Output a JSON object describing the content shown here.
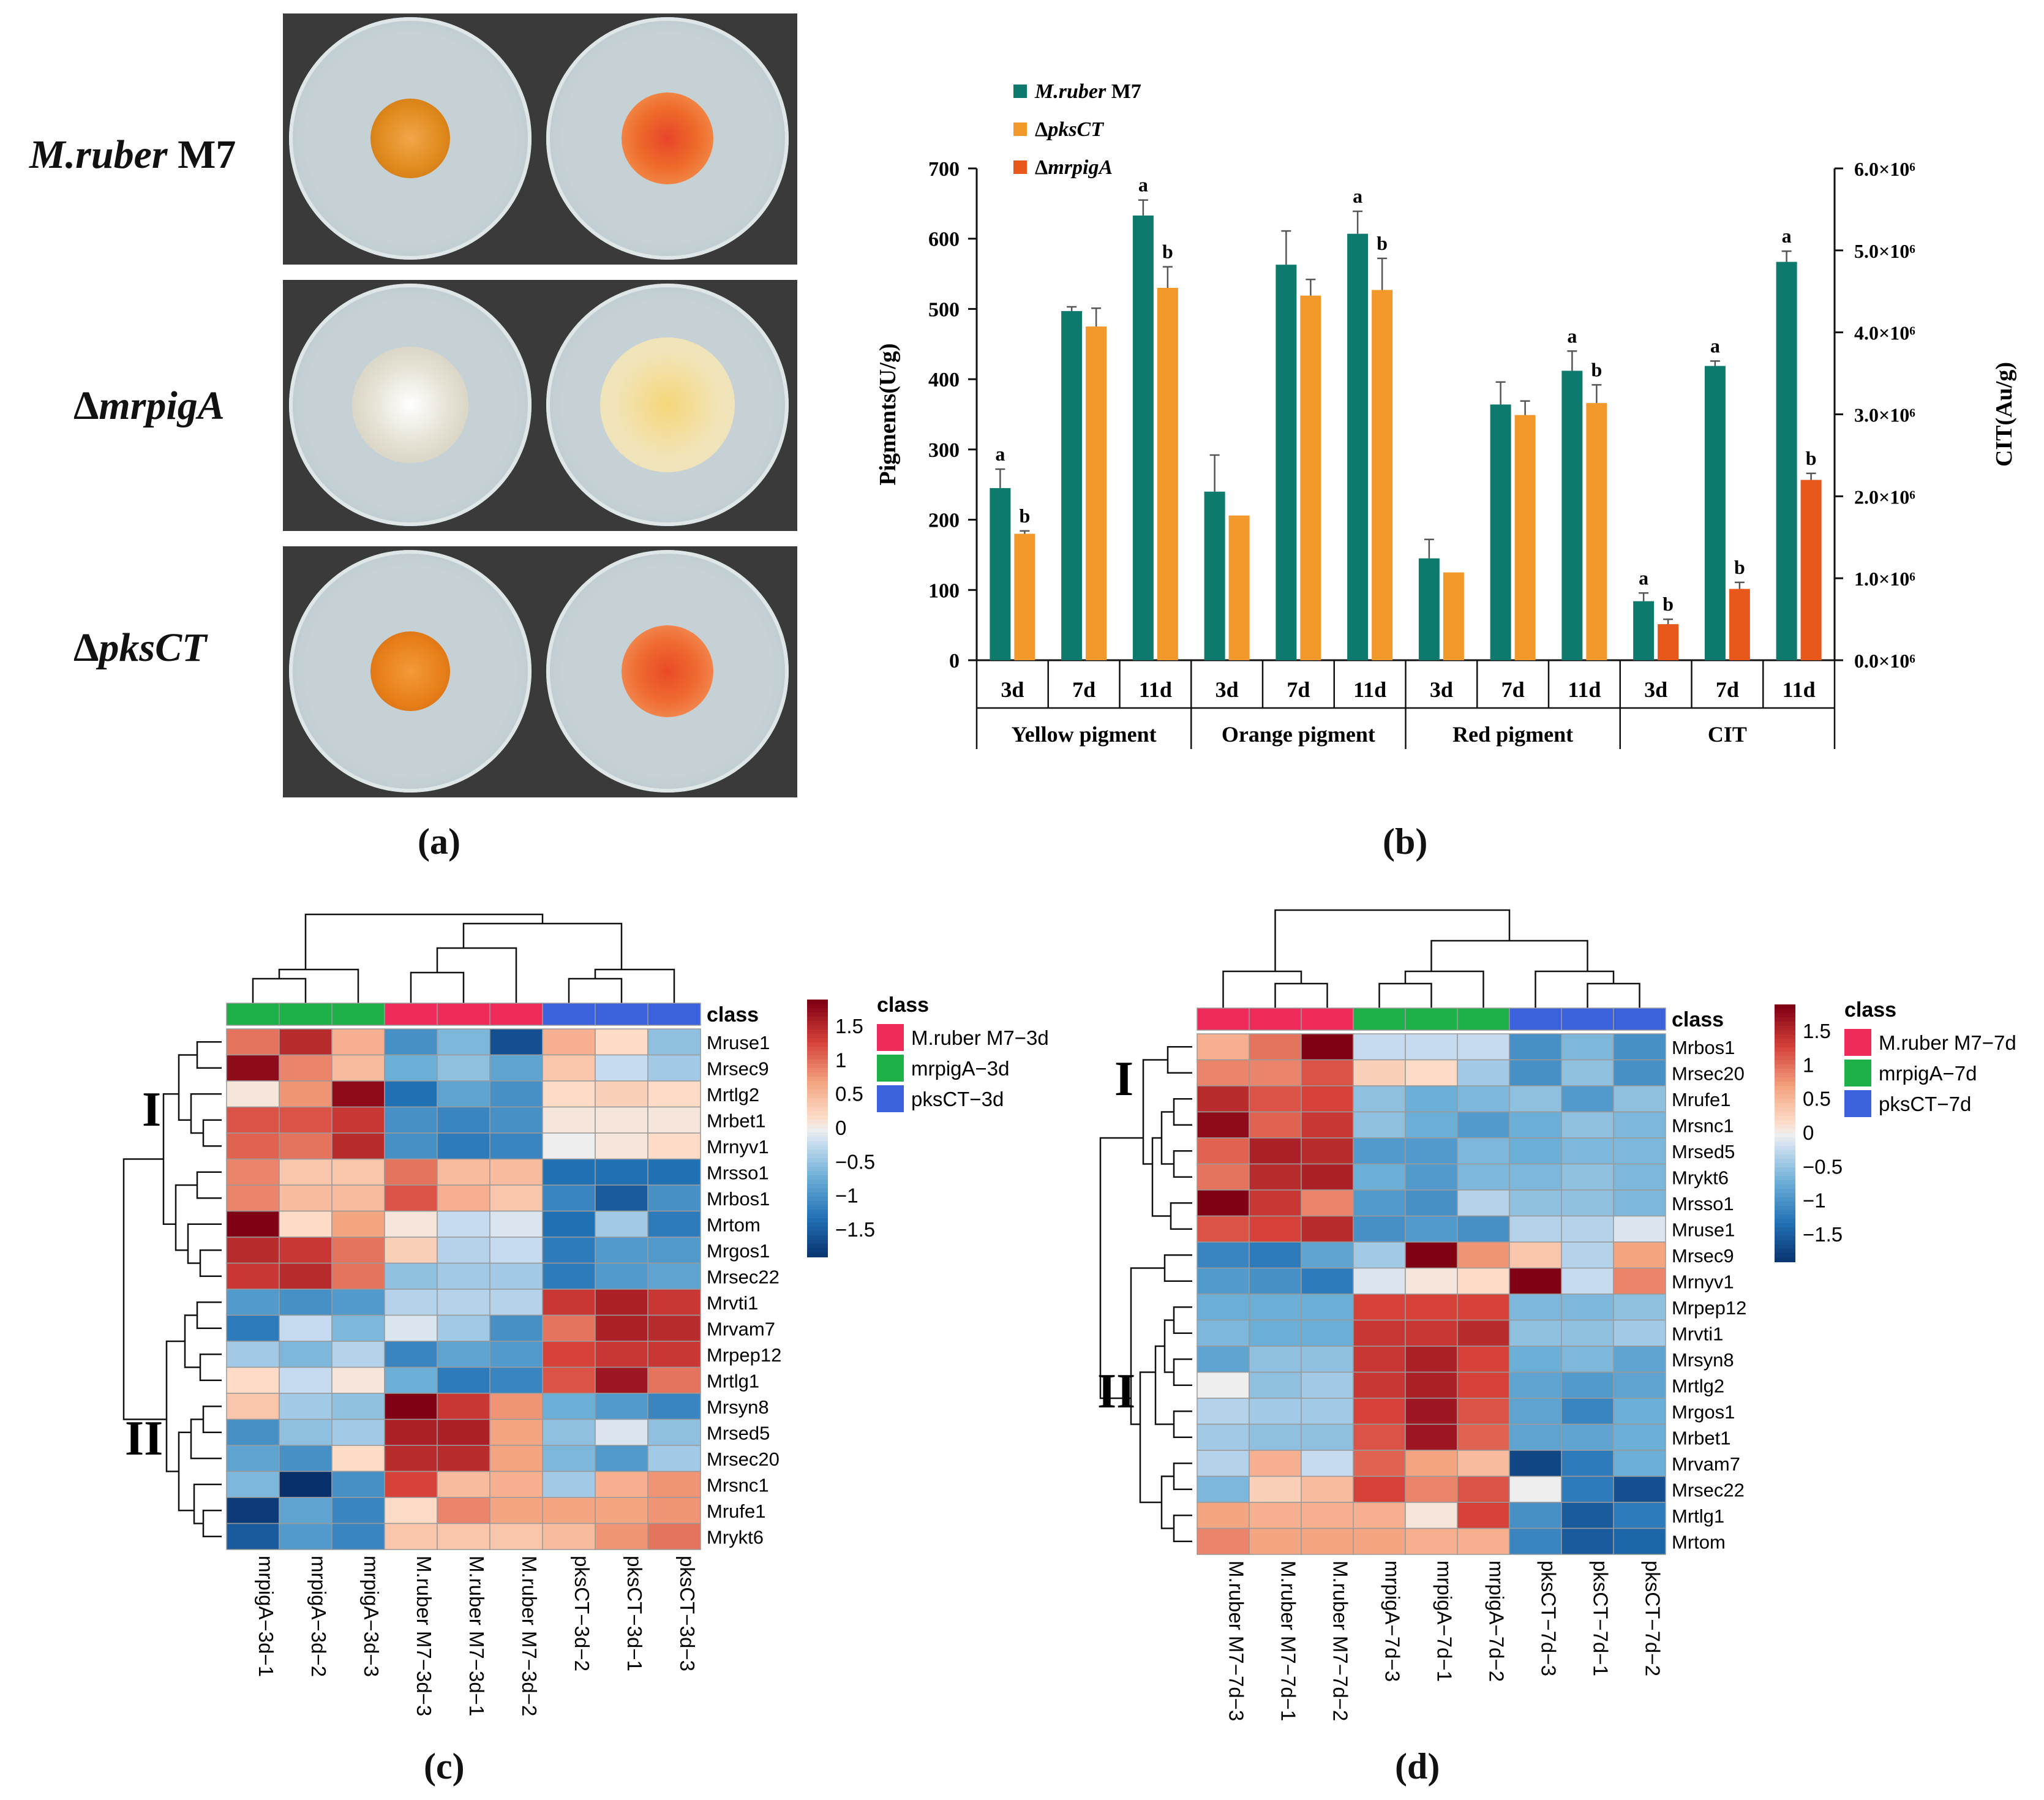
{
  "panels": {
    "a": "(a)",
    "b": "(b)",
    "c": "(c)",
    "d": "(d)"
  },
  "panel_a": {
    "strains": [
      {
        "italic": "M.ruber",
        "rest": " M7"
      },
      {
        "italic": "mrpigA",
        "rest": "",
        "prefix": "Δ"
      },
      {
        "italic": "pksCT",
        "rest": "",
        "prefix": "Δ"
      }
    ],
    "colony_colors": [
      [
        "#e08b1e",
        "#ee6a2a"
      ],
      [
        "#e4e0d2",
        "#f2e4b8"
      ],
      [
        "#e8801a",
        "#ef6a30"
      ]
    ]
  },
  "chart_data": [
    {
      "id": "b",
      "type": "bar",
      "series": [
        {
          "name": "M.ruber M7",
          "label_italic": "M.ruber",
          "label_rest": " M7",
          "color": "#0e7a6e"
        },
        {
          "name": "ΔpksCT",
          "label_prefix": "Δ",
          "label_italic": "pksCT",
          "color": "#f3982a"
        },
        {
          "name": "ΔmrpigA",
          "label_prefix": "Δ",
          "label_italic": "mrpigA",
          "color": "#e8581a"
        }
      ],
      "groups": [
        "Yellow pigment",
        "Orange pigment",
        "Red pigment",
        "CIT"
      ],
      "categories": [
        "3d",
        "7d",
        "11d",
        "3d",
        "7d",
        "11d",
        "3d",
        "7d",
        "11d",
        "3d",
        "7d",
        "11d"
      ],
      "pigment_values": {
        "M.ruber M7": [
          245,
          497,
          633,
          240,
          563,
          607,
          145,
          364,
          412
        ],
        "ΔpksCT": [
          180,
          475,
          530,
          206,
          519,
          527,
          125,
          349,
          366
        ],
        "errors_M7": [
          27,
          6,
          22,
          52,
          48,
          32,
          27,
          32,
          28
        ],
        "errors_pksCT": [
          4,
          26,
          30,
          0,
          23,
          45,
          0,
          20,
          26
        ]
      },
      "cit_values": {
        "M.ruber M7": [
          720000,
          3590000,
          4860000
        ],
        "ΔmrpigA": [
          440000,
          870000,
          2200000
        ],
        "errors_M7": [
          100000,
          60000,
          130000
        ],
        "errors_mrpigA": [
          60000,
          80000,
          80000
        ]
      },
      "letters": {
        "M.ruber M7": [
          "a",
          "",
          "a",
          "",
          "",
          "a",
          "",
          "",
          "a",
          "a",
          "a",
          "a"
        ],
        "second": [
          "b",
          "",
          "b",
          "",
          "",
          "b",
          "",
          "",
          "b",
          "b",
          "b",
          "b"
        ]
      },
      "ylabel": "Pigments(U/g)",
      "ylabel2": "CIT(Au/g)",
      "ylim": [
        0,
        700
      ],
      "yticks": [
        "0",
        "100",
        "200",
        "300",
        "400",
        "500",
        "600",
        "700"
      ],
      "y2lim": [
        0,
        6000000
      ],
      "y2ticks": [
        "0.0×10⁶",
        "1.0×10⁶",
        "2.0×10⁶",
        "3.0×10⁶",
        "4.0×10⁶",
        "5.0×10⁶",
        "6.0×10⁶"
      ]
    },
    {
      "id": "c",
      "type": "heatmap",
      "columns": [
        "mrpigA−3d−1",
        "mrpigA−3d−2",
        "mrpigA−3d−3",
        "M.ruber M7−3d−3",
        "M.ruber M7−3d−1",
        "M.ruber M7−3d−2",
        "pksCT−3d−2",
        "pksCT−3d−1",
        "pksCT−3d−3"
      ],
      "column_class": [
        1,
        1,
        1,
        0,
        0,
        0,
        2,
        2,
        2
      ],
      "rows": [
        "Mruse1",
        "Mrsec9",
        "Mrtlg2",
        "Mrbet1",
        "Mrnyv1",
        "Mrsso1",
        "Mrbos1",
        "Mrtom",
        "Mrgos1",
        "Mrsec22",
        "Mrvti1",
        "Mrvam7",
        "Mrpep12",
        "Mrtlg1",
        "Mrsyn8",
        "Mrsed5",
        "Mrsec20",
        "Mrsnc1",
        "Mrufe1",
        "Mrykt6"
      ],
      "values": [
        [
          1.0,
          1.5,
          0.6,
          -1.0,
          -0.6,
          -1.6,
          0.6,
          0.2,
          -0.5
        ],
        [
          1.8,
          0.9,
          0.5,
          -0.7,
          -0.5,
          -0.8,
          0.4,
          -0.2,
          -0.4
        ],
        [
          0.1,
          0.8,
          1.8,
          -1.3,
          -0.8,
          -1.0,
          0.2,
          0.3,
          0.2
        ],
        [
          1.2,
          1.2,
          1.4,
          -1.0,
          -1.1,
          -1.0,
          0.1,
          0.1,
          0.1
        ],
        [
          1.1,
          1.0,
          1.5,
          -1.0,
          -1.2,
          -1.1,
          0.0,
          0.1,
          0.2
        ],
        [
          0.9,
          0.4,
          0.4,
          1.0,
          0.5,
          0.5,
          -1.3,
          -1.3,
          -1.3
        ],
        [
          0.9,
          0.5,
          0.5,
          1.2,
          0.6,
          0.4,
          -1.1,
          -1.5,
          -1.0
        ],
        [
          1.9,
          0.2,
          0.7,
          0.1,
          -0.2,
          -0.1,
          -1.3,
          -0.4,
          -1.2
        ],
        [
          1.5,
          1.4,
          1.0,
          0.3,
          -0.3,
          -0.2,
          -1.2,
          -0.9,
          -0.9
        ],
        [
          1.4,
          1.5,
          1.0,
          -0.5,
          -0.4,
          -0.4,
          -1.2,
          -0.9,
          -0.8
        ],
        [
          -0.9,
          -1.0,
          -0.9,
          -0.3,
          -0.3,
          -0.3,
          1.4,
          1.6,
          1.4
        ],
        [
          -1.2,
          -0.2,
          -0.6,
          -0.1,
          -0.4,
          -1.0,
          1.0,
          1.6,
          1.5
        ],
        [
          -0.4,
          -0.6,
          -0.3,
          -1.1,
          -0.8,
          -0.9,
          1.3,
          1.4,
          1.4
        ],
        [
          0.2,
          -0.2,
          0.1,
          -0.7,
          -1.2,
          -1.1,
          1.2,
          1.7,
          1.0
        ],
        [
          0.4,
          -0.4,
          -0.5,
          1.9,
          1.4,
          0.8,
          -0.7,
          -0.9,
          -1.1
        ],
        [
          -1.0,
          -0.5,
          -0.4,
          1.6,
          1.6,
          0.7,
          -0.5,
          -0.1,
          -0.5
        ],
        [
          -0.8,
          -1.0,
          0.2,
          1.5,
          1.5,
          0.7,
          -0.6,
          -0.9,
          -0.4
        ],
        [
          -0.6,
          -1.9,
          -1.0,
          1.3,
          0.5,
          0.6,
          -0.4,
          0.6,
          0.8
        ],
        [
          -1.8,
          -0.8,
          -1.1,
          0.2,
          0.9,
          0.7,
          0.7,
          0.7,
          0.8
        ],
        [
          -1.5,
          -0.9,
          -1.1,
          0.4,
          0.4,
          0.4,
          0.5,
          0.8,
          1.0
        ]
      ],
      "cluster_labels": [
        "I",
        "II"
      ],
      "legend_title": "class",
      "classes": [
        {
          "name": "M.ruber M7−3d",
          "color": "#ee2b5b"
        },
        {
          "name": "mrpigA−3d",
          "color": "#1db148"
        },
        {
          "name": "pksCT−3d",
          "color": "#3b62dc"
        }
      ],
      "scale_ticks": [
        "1.5",
        "1",
        "0.5",
        "0",
        "−0.5",
        "−1",
        "−1.5"
      ]
    },
    {
      "id": "d",
      "type": "heatmap",
      "columns": [
        "M.ruber M7−7d−3",
        "M.ruber M7−7d−1",
        "M.ruber M7−7d−2",
        "mrpigA−7d−3",
        "mrpigA−7d−1",
        "mrpigA−7d−2",
        "pksCT−7d−3",
        "pksCT−7d−1",
        "pksCT−7d−2"
      ],
      "column_class": [
        0,
        0,
        0,
        1,
        1,
        1,
        2,
        2,
        2
      ],
      "rows": [
        "Mrbos1",
        "Mrsec20",
        "Mrufe1",
        "Mrsnc1",
        "Mrsed5",
        "Mrykt6",
        "Mrsso1",
        "Mruse1",
        "Mrsec9",
        "Mrnyv1",
        "Mrpep12",
        "Mrvti1",
        "Mrsyn8",
        "Mrtlg2",
        "Mrgos1",
        "Mrbet1",
        "Mrvam7",
        "Mrsec22",
        "Mrtlg1",
        "Mrtom"
      ],
      "values": [
        [
          0.6,
          1.0,
          1.9,
          -0.2,
          -0.2,
          -0.2,
          -1.0,
          -0.6,
          -1.0
        ],
        [
          0.9,
          0.9,
          1.2,
          0.3,
          0.2,
          -0.4,
          -1.0,
          -0.5,
          -1.0
        ],
        [
          1.5,
          1.2,
          1.3,
          -0.5,
          -0.7,
          -0.6,
          -0.5,
          -0.9,
          -0.5
        ],
        [
          1.8,
          1.1,
          1.4,
          -0.5,
          -0.7,
          -0.9,
          -0.7,
          -0.5,
          -0.6
        ],
        [
          1.1,
          1.6,
          1.5,
          -0.9,
          -0.9,
          -0.6,
          -0.7,
          -0.6,
          -0.6
        ],
        [
          1.0,
          1.5,
          1.6,
          -0.7,
          -0.9,
          -0.6,
          -0.6,
          -0.5,
          -0.6
        ],
        [
          1.9,
          1.4,
          0.9,
          -0.9,
          -1.0,
          -0.3,
          -0.5,
          -0.5,
          -0.6
        ],
        [
          1.2,
          1.3,
          1.5,
          -1.0,
          -0.9,
          -1.0,
          -0.3,
          -0.3,
          -0.1
        ],
        [
          -1.1,
          -1.2,
          -0.8,
          -0.4,
          1.9,
          0.8,
          0.4,
          -0.3,
          0.7
        ],
        [
          -0.9,
          -1.0,
          -1.2,
          -0.1,
          0.1,
          0.2,
          1.9,
          -0.2,
          0.9
        ],
        [
          -0.7,
          -0.7,
          -0.7,
          1.3,
          1.3,
          1.3,
          -0.6,
          -0.6,
          -0.5
        ],
        [
          -0.6,
          -0.7,
          -0.7,
          1.4,
          1.4,
          1.5,
          -0.5,
          -0.5,
          -0.4
        ],
        [
          -0.8,
          -0.5,
          -0.5,
          1.4,
          1.6,
          1.3,
          -0.7,
          -0.6,
          -0.8
        ],
        [
          0.0,
          -0.5,
          -0.4,
          1.4,
          1.6,
          1.3,
          -0.8,
          -0.9,
          -0.8
        ],
        [
          -0.3,
          -0.4,
          -0.4,
          1.3,
          1.7,
          1.2,
          -0.8,
          -1.1,
          -0.7
        ],
        [
          -0.4,
          -0.5,
          -0.5,
          1.2,
          1.7,
          1.1,
          -0.8,
          -0.8,
          -0.7
        ],
        [
          -0.3,
          0.6,
          -0.2,
          1.1,
          0.7,
          0.5,
          -1.7,
          -1.2,
          -0.7
        ],
        [
          -0.6,
          0.3,
          0.5,
          1.3,
          0.9,
          1.2,
          0.0,
          -1.2,
          -1.6
        ],
        [
          0.7,
          0.6,
          0.6,
          0.6,
          0.1,
          1.3,
          -1.0,
          -1.5,
          -1.2
        ],
        [
          0.9,
          0.7,
          0.7,
          0.7,
          0.6,
          0.6,
          -1.1,
          -1.5,
          -1.4
        ]
      ],
      "cluster_labels": [
        "I",
        "II"
      ],
      "legend_title": "class",
      "classes": [
        {
          "name": "M.ruber M7−7d",
          "color": "#ee2b5b"
        },
        {
          "name": "mrpigA−7d",
          "color": "#1db148"
        },
        {
          "name": "pksCT−7d",
          "color": "#3b62dc"
        }
      ],
      "scale_ticks": [
        "1.5",
        "1",
        "0.5",
        "0",
        "−0.5",
        "−1",
        "−1.5"
      ]
    }
  ]
}
